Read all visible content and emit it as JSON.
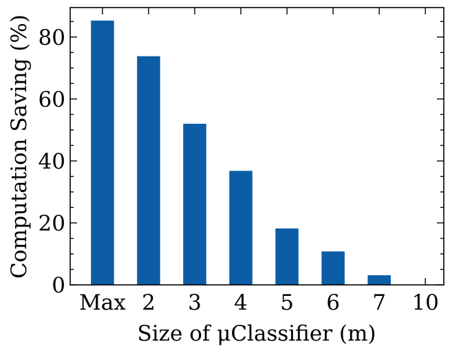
{
  "chart_data": {
    "type": "bar",
    "title": "",
    "xlabel": "Size of μClassifier (m)",
    "ylabel": "Computation Saving (%)",
    "categories": [
      "Max",
      "2",
      "3",
      "4",
      "5",
      "6",
      "7",
      "10"
    ],
    "values": [
      85.3,
      73.8,
      52.0,
      36.8,
      18.2,
      10.8,
      3.1,
      0
    ],
    "ylim": [
      0,
      89.5
    ],
    "yticks": [
      0,
      20,
      40,
      60,
      80
    ],
    "xlim": [
      -0.7,
      7.4
    ],
    "grid": false,
    "bar_color": "#0c5da5"
  }
}
